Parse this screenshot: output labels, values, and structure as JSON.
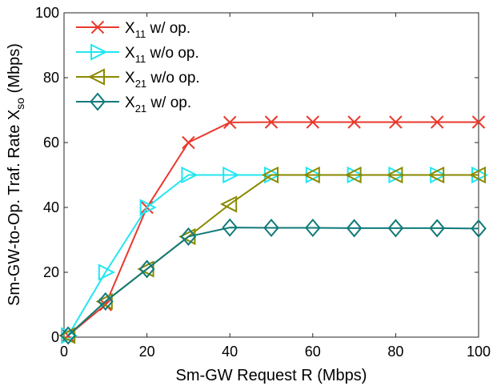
{
  "chart_data": {
    "type": "line",
    "xlabel": "Sm-GW Request R (Mbps)",
    "ylabel": {
      "main": "Sm-GW-to-Op. Traf. Rate X",
      "sub": "so",
      "tail": " (Mbps)"
    },
    "xlim": [
      0,
      100
    ],
    "ylim": [
      0,
      100
    ],
    "x_ticks": [
      0,
      20,
      40,
      60,
      80,
      100
    ],
    "y_ticks": [
      0,
      20,
      40,
      60,
      80,
      100
    ],
    "grid": false,
    "legend_position": "top-left",
    "x": [
      1,
      10,
      20,
      30,
      40,
      50,
      60,
      70,
      80,
      90,
      100
    ],
    "series": [
      {
        "label_main": "X",
        "label_sub": "11",
        "label_tail": " w/  op.",
        "color": "#e8392c",
        "marker": "x",
        "values": [
          0.5,
          10,
          40,
          60,
          66.2,
          66.3,
          66.3,
          66.3,
          66.3,
          66.3,
          66.3
        ]
      },
      {
        "label_main": "X",
        "label_sub": "11",
        "label_tail": " w/o op.",
        "color": "#21e6f0",
        "marker": "triangle-right",
        "values": [
          0.5,
          20,
          40,
          50,
          50,
          50,
          50,
          50,
          50,
          50,
          50
        ]
      },
      {
        "label_main": "X",
        "label_sub": "21",
        "label_tail": " w/o op.",
        "color": "#8a8a00",
        "marker": "triangle-left",
        "values": [
          0.5,
          11,
          21,
          31,
          41,
          50,
          50,
          50,
          50,
          50,
          50
        ]
      },
      {
        "label_main": "X",
        "label_sub": "21",
        "label_tail": " w/  op.",
        "color": "#117a7a",
        "marker": "diamond",
        "values": [
          0.5,
          11,
          21,
          31,
          33.8,
          33.7,
          33.7,
          33.6,
          33.6,
          33.6,
          33.5
        ]
      }
    ]
  }
}
